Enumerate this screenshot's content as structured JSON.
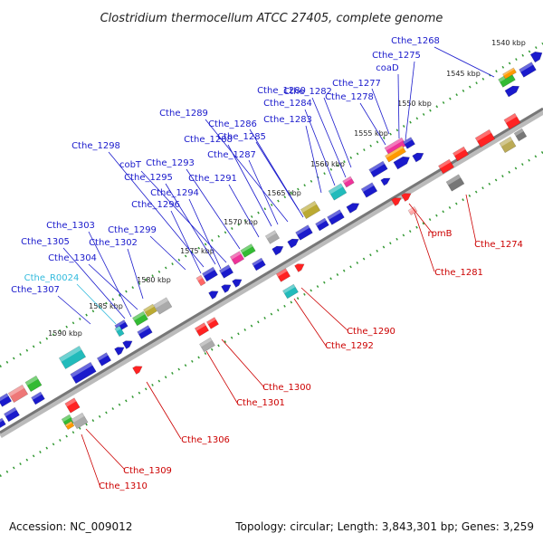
{
  "title": "Clostridium thermocellum ATCC 27405, complete genome",
  "accession": "Accession: NC_009012",
  "topology": "Topology: circular; Length: 3,843,301 bp; Genes: 3,259",
  "colors": {
    "forward_label": "#1a1acc",
    "reverse_label": "#cc0000",
    "rna_label": "#33bbdd",
    "backbone": "#888888",
    "tick": "#339933"
  },
  "kbp_ticks": [
    "1540 kbp",
    "1545 kbp",
    "1550 kbp",
    "1555 kbp",
    "1560 kbp",
    "1565 kbp",
    "1570 kbp",
    "1575 kbp",
    "1580 kbp",
    "1585 kbp",
    "1590 kbp"
  ],
  "forward_genes": [
    "Cthe_1268",
    "Cthe_1275",
    "coaD",
    "Cthe_1277",
    "Cthe_1278",
    "Cthe_1280",
    "Cthe_1282",
    "Cthe_1284",
    "Cthe_1283",
    "Cthe_1289",
    "Cthe_1286",
    "Cthe_1285",
    "Cthe_1288",
    "Cthe_1287",
    "Cthe_1298",
    "cobT",
    "Cthe_1293",
    "Cthe_1295",
    "Cthe_1291",
    "Cthe_1294",
    "Cthe_1296",
    "Cthe_1303",
    "Cthe_1299",
    "Cthe_1305",
    "Cthe_1302",
    "Cthe_1304",
    "Cthe_R0024",
    "Cthe_1307"
  ],
  "reverse_genes": [
    "Cthe_1274",
    "rpmB",
    "Cthe_1281",
    "Cthe_1290",
    "Cthe_1292",
    "Cthe_1300",
    "Cthe_1301",
    "Cthe_1306",
    "Cthe_1309",
    "Cthe_1310"
  ]
}
